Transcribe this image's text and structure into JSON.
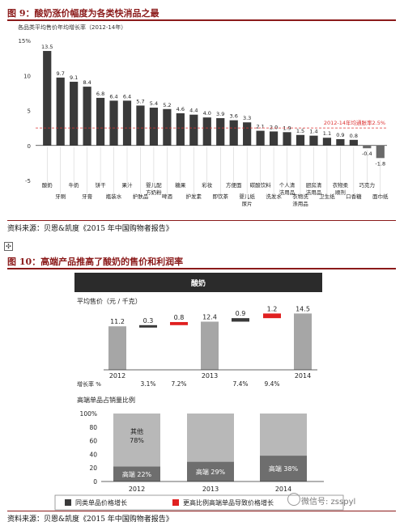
{
  "figure9": {
    "title": "图 9：酸奶涨价幅度为各类快消品之最",
    "subtitle": "各品类平均售价年均增长率（2012-14年）",
    "source": "资料来源：贝恩&凯度《2015 年中国购物者报告》",
    "chart_data": {
      "type": "bar",
      "ylim": [
        -5,
        15
      ],
      "yticks": [
        "15%",
        "10",
        "5",
        "0",
        "-5"
      ],
      "ytick_values": [
        15,
        10,
        5,
        0,
        -5
      ],
      "categories": [
        "酸奶",
        "牙刷",
        "牛奶",
        "牙膏",
        "饼干",
        "瓶装水",
        "果汁",
        "护肤品",
        "婴儿配方奶粉",
        "啤酒",
        "糖果",
        "护发素",
        "彩妆",
        "即饮茶",
        "方便面",
        "婴儿纸尿片",
        "碳酸饮料",
        "洗发水",
        "个人清洁用品",
        "衣物洗涤用品",
        "厨房清洁用品",
        "卫生纸",
        "衣物柔顺剂",
        "口香糖",
        "巧克力",
        "面巾纸"
      ],
      "values": [
        13.5,
        9.7,
        9.1,
        8.4,
        6.8,
        6.4,
        6.4,
        5.7,
        5.4,
        5.2,
        4.6,
        4.4,
        4.0,
        3.9,
        3.6,
        3.3,
        2.1,
        2.0,
        1.9,
        1.5,
        1.4,
        1.1,
        0.9,
        0.8,
        -0.4,
        -1.8
      ],
      "value_labels": [
        "13.5",
        "9.7",
        "9.1",
        "8.4",
        "6.8",
        "6.4",
        "6.4",
        "5.7",
        "5.4",
        "5.2",
        "4.6",
        "4.4",
        "4.0",
        "3.9",
        "3.6",
        "3.3",
        "2.1",
        "2.0",
        "1.9",
        "1.5",
        "1.4",
        "1.1",
        "0.9",
        "0.8",
        "-0.4",
        "-1.8"
      ],
      "reference_line": {
        "value": 2.5,
        "label": "2012-14年均通胀率2.5%"
      },
      "colors": {
        "bar": "#3a3a3a",
        "reference": "#d33",
        "bar_light": "#9a9a9a"
      },
      "grid": false
    }
  },
  "figure10": {
    "title": "图 10：高端产品推高了酸奶的售价和利润率",
    "source": "资料来源：贝恩&凯度《2015 年中国购物者报告》",
    "header": "酸奶",
    "price_label": "平均售价（元 / 千克）",
    "growth_label": "增长率 %",
    "share_label": "高端单品占销量比例",
    "chart_data": [
      {
        "type": "bar",
        "title": "平均售价（元 / 千克）",
        "categories": [
          "2012",
          "2013",
          "2014"
        ],
        "values": [
          11.2,
          12.4,
          14.5
        ],
        "value_labels": [
          "11.2",
          "12.4",
          "14.5"
        ],
        "bridge_2012_2013": [
          {
            "value": 0.3,
            "type": "same"
          },
          {
            "value": 0.8,
            "type": "premium"
          }
        ],
        "bridge_2013_2014": [
          {
            "value": 0.9,
            "type": "same"
          },
          {
            "value": 1.2,
            "type": "premium"
          }
        ],
        "bridge_labels": [
          "0.3",
          "0.8",
          "0.9",
          "1.2"
        ],
        "growth_rates": [
          "3.1%",
          "7.2%",
          "7.4%",
          "9.4%"
        ],
        "colors": {
          "bar": "#a6a6a6",
          "same": "#3a3a3a",
          "premium": "#e02020"
        }
      },
      {
        "type": "bar",
        "title": "高端单品占销量比例",
        "categories": [
          "2012",
          "2013",
          "2014"
        ],
        "yticks": [
          "100%",
          "80",
          "60",
          "40",
          "20",
          "0"
        ],
        "ytick_values": [
          100,
          80,
          60,
          40,
          20,
          0
        ],
        "series": [
          {
            "name": "高端",
            "values": [
              22,
              29,
              38
            ],
            "labels": [
              "高端 22%",
              "高端 29%",
              "高端 38%"
            ]
          },
          {
            "name": "其他",
            "values": [
              78,
              71,
              62
            ],
            "labels": [
              "其他\n78%",
              "",
              ""
            ]
          }
        ],
        "other_label_line1": "其他",
        "other_label_line2": "78%",
        "colors": {
          "premium": "#6e6e6e",
          "other": "#b8b8b8"
        }
      }
    ],
    "legend": {
      "same": "同类单品价格增长",
      "premium": "更高比例高端单品导致价格增长"
    }
  },
  "watermark": {
    "text": "微信号: zsspyl"
  },
  "icons": {
    "anchor": "move-anchor-icon"
  }
}
